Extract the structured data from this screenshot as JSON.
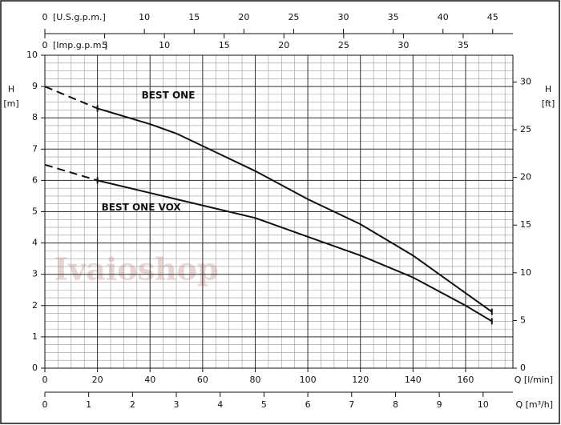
{
  "chart_data": {
    "type": "line",
    "x": [
      0,
      20,
      40,
      50,
      60,
      80,
      100,
      120,
      140,
      160,
      170
    ],
    "series": [
      {
        "name": "BEST ONE",
        "color": "#111111",
        "dashed_to": 1,
        "values": [
          9.0,
          8.3,
          7.8,
          7.5,
          7.1,
          6.3,
          5.4,
          4.6,
          3.6,
          2.4,
          1.8
        ]
      },
      {
        "name": "BEST ONE VOX",
        "color": "#111111",
        "dashed_to": 1,
        "values": [
          6.5,
          6.0,
          5.6,
          5.4,
          5.2,
          4.8,
          4.2,
          3.6,
          2.9,
          2.0,
          1.5
        ]
      }
    ],
    "xlim": [
      0,
      178
    ],
    "xticks": [
      0,
      20,
      40,
      60,
      80,
      100,
      120,
      140,
      160
    ],
    "xlabel": "Q [l/min]",
    "ylim": [
      0,
      10
    ],
    "yticks": [
      0,
      1,
      2,
      3,
      4,
      5,
      6,
      7,
      8,
      9,
      10
    ],
    "ylabel": "H",
    "ylabel_unit": "[m]",
    "y2lim": [
      0,
      32.81
    ],
    "y2ticks": [
      0,
      5,
      10,
      15,
      20,
      25,
      30
    ],
    "y2label": "H",
    "y2label_unit": "[ft]",
    "minor_grid": {
      "x": 5,
      "y": 0.25
    },
    "grid": true,
    "top_axes": [
      {
        "label": "[U.S.g.p.m.]",
        "lim": [
          0,
          47.03
        ],
        "ticks": [
          0,
          10,
          15,
          20,
          25,
          30,
          35,
          40,
          45
        ]
      },
      {
        "label": "[Imp.g.p.m.]",
        "lim": [
          0,
          39.16
        ],
        "ticks": [
          0,
          5,
          10,
          15,
          20,
          25,
          30,
          35
        ]
      }
    ],
    "bottom_axis": {
      "label": "Q [m³/h]",
      "lim": [
        0,
        10.68
      ],
      "ticks": [
        0,
        1,
        2,
        3,
        4,
        5,
        6,
        7,
        8,
        9,
        10
      ]
    },
    "watermark": "Ivaioshop"
  }
}
